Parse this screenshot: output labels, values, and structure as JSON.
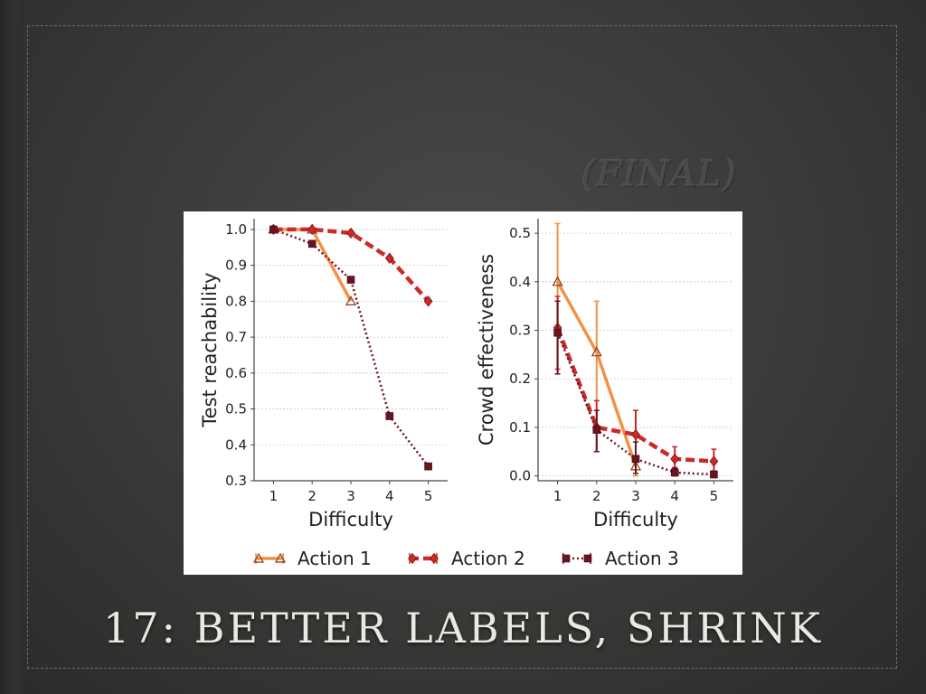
{
  "slide": {
    "subtitle": "(FINAL)",
    "title": "17: BETTER LABELS, SHRINK"
  },
  "chart_data": [
    {
      "type": "line",
      "title": "",
      "xlabel": "Difficulty",
      "ylabel": "Test reachability",
      "x": [
        1,
        2,
        3,
        4,
        5
      ],
      "xlim": [
        0.5,
        5.5
      ],
      "ylim": [
        0.3,
        1.03
      ],
      "yticks": [
        "0.3",
        "0.4",
        "0.5",
        "0.6",
        "0.7",
        "0.8",
        "0.9",
        "1.0"
      ],
      "xticks": [
        "1",
        "2",
        "3",
        "4",
        "5"
      ],
      "grid": "horizontal dotted",
      "series": [
        {
          "name": "Action 1",
          "values": [
            1.0,
            1.0,
            0.8,
            null,
            null
          ]
        },
        {
          "name": "Action 2",
          "values": [
            1.0,
            1.0,
            0.99,
            0.92,
            0.8
          ]
        },
        {
          "name": "Action 3",
          "values": [
            1.0,
            0.96,
            0.86,
            0.48,
            0.34
          ]
        }
      ]
    },
    {
      "type": "line",
      "title": "",
      "xlabel": "Difficulty",
      "ylabel": "Crowd effectiveness",
      "x": [
        1,
        2,
        3,
        4,
        5
      ],
      "xlim": [
        0.5,
        5.5
      ],
      "ylim": [
        -0.01,
        0.53
      ],
      "yticks": [
        "0.0",
        "0.1",
        "0.2",
        "0.3",
        "0.4",
        "0.5"
      ],
      "xticks": [
        "1",
        "2",
        "3",
        "4",
        "5"
      ],
      "grid": "horizontal dotted",
      "series": [
        {
          "name": "Action 1",
          "values": [
            0.4,
            0.255,
            0.02,
            null,
            null
          ],
          "err_low": [
            0.3,
            0.155,
            0.0,
            null,
            null
          ],
          "err_high": [
            0.52,
            0.36,
            0.04,
            null,
            null
          ]
        },
        {
          "name": "Action 2",
          "values": [
            0.305,
            0.1,
            0.085,
            0.035,
            0.03
          ],
          "err_low": [
            0.22,
            0.05,
            0.035,
            0.015,
            0.01
          ],
          "err_high": [
            0.37,
            0.155,
            0.135,
            0.06,
            0.055
          ]
        },
        {
          "name": "Action 3",
          "values": [
            0.295,
            0.095,
            0.035,
            0.007,
            0.003
          ],
          "err_low": [
            0.21,
            0.05,
            0.005,
            0.0,
            0.0
          ],
          "err_high": [
            0.36,
            0.135,
            0.07,
            0.017,
            0.01
          ]
        }
      ]
    }
  ],
  "legend": {
    "placement": "bottom",
    "items": [
      {
        "label": "Action 1",
        "color": "#f0924a",
        "marker": "triangle",
        "dash": "solid"
      },
      {
        "label": "Action 2",
        "color": "#cc2a2a",
        "marker": "diamond",
        "dash": "dashed"
      },
      {
        "label": "Action 3",
        "color": "#6b1420",
        "marker": "square",
        "dash": "dotted"
      }
    ]
  },
  "colors": {
    "grid": "#c8c8c8",
    "axis": "#444444"
  }
}
